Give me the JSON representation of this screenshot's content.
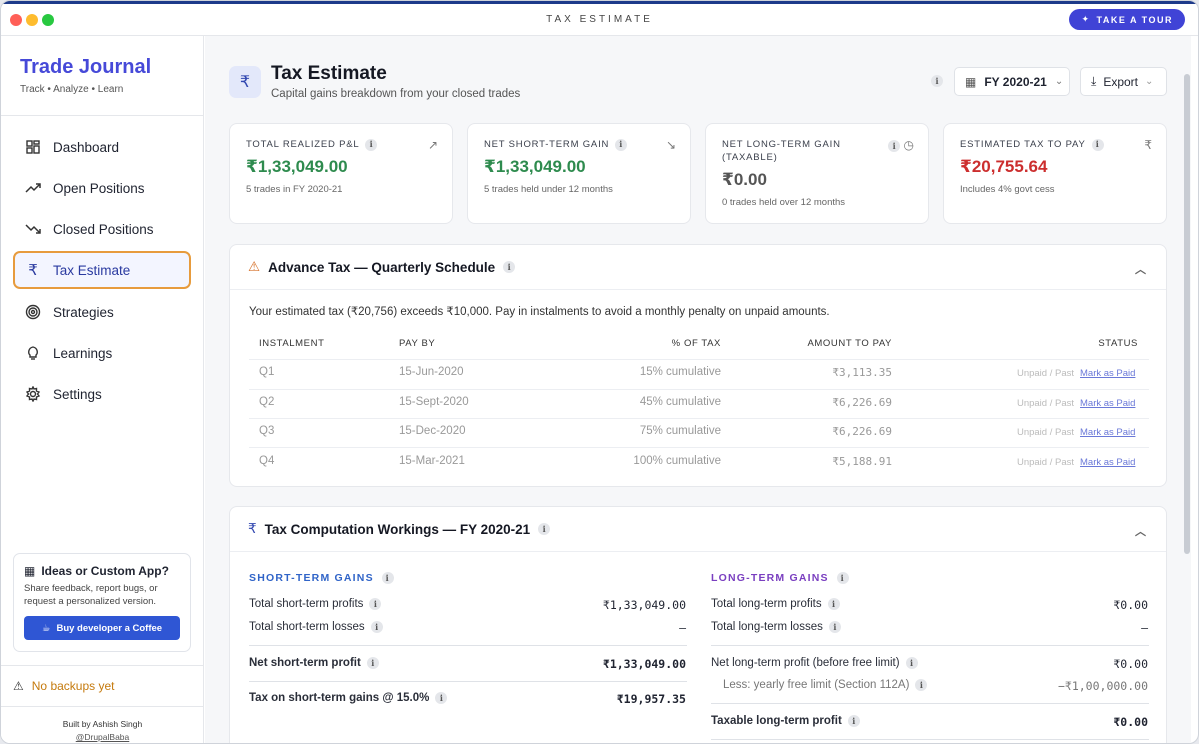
{
  "window": {
    "title": "TAX ESTIMATE",
    "tour_button": "TAKE A TOUR"
  },
  "sidebar": {
    "brand": "Trade Journal",
    "tagline": "Track • Analyze • Learn",
    "items": [
      {
        "label": "Dashboard",
        "icon": "grid-icon"
      },
      {
        "label": "Open Positions",
        "icon": "trend-up-icon"
      },
      {
        "label": "Closed Positions",
        "icon": "trend-down-icon"
      },
      {
        "label": "Tax Estimate",
        "icon": "rupee-icon"
      },
      {
        "label": "Strategies",
        "icon": "target-icon"
      },
      {
        "label": "Learnings",
        "icon": "bulb-icon"
      },
      {
        "label": "Settings",
        "icon": "gear-icon"
      }
    ],
    "ideas": {
      "title": "Ideas or Custom App?",
      "text": "Share feedback, report bugs, or request a personalized version.",
      "button": "Buy developer a Coffee"
    },
    "backups": "No backups yet",
    "built_by": "Built by Ashish Singh",
    "handle": "@DrupalBaba"
  },
  "header": {
    "icon": "₹",
    "title": "Tax Estimate",
    "subtitle": "Capital gains breakdown from your closed trades",
    "fy": "FY 2020-21",
    "export": "Export"
  },
  "kpis": [
    {
      "label": "TOTAL REALIZED P&L",
      "value": "₹1,33,049.00",
      "note": "5 trades in FY 2020-21",
      "color": "#2e8b4e"
    },
    {
      "label": "NET SHORT-TERM GAIN",
      "value": "₹1,33,049.00",
      "note": "5 trades held under 12 months",
      "color": "#2e8b4e"
    },
    {
      "label": "NET LONG-TERM GAIN",
      "label2": "(TAXABLE)",
      "value": "₹0.00",
      "note": "0 trades held over 12 months",
      "color": "#555555"
    },
    {
      "label": "ESTIMATED TAX TO PAY",
      "value": "₹20,755.64",
      "note": "Includes 4% govt cess",
      "color": "#cc2e2e"
    }
  ],
  "advance": {
    "title": "Advance Tax — Quarterly Schedule",
    "desc": "Your estimated tax (₹20,756) exceeds ₹10,000. Pay in instalments to avoid a monthly penalty on unpaid amounts.",
    "headers": {
      "instalment": "INSTALMENT",
      "pay_by": "PAY BY",
      "pct": "% OF TAX",
      "amount": "AMOUNT TO PAY",
      "status": "STATUS"
    },
    "rows": [
      {
        "q": "Q1",
        "date": "15-Jun-2020",
        "pct": "15% cumulative",
        "amount": "₹3,113.35",
        "status": "Unpaid / Past",
        "action": "Mark as Paid"
      },
      {
        "q": "Q2",
        "date": "15-Sept-2020",
        "pct": "45% cumulative",
        "amount": "₹6,226.69",
        "status": "Unpaid / Past",
        "action": "Mark as Paid"
      },
      {
        "q": "Q3",
        "date": "15-Dec-2020",
        "pct": "75% cumulative",
        "amount": "₹6,226.69",
        "status": "Unpaid / Past",
        "action": "Mark as Paid"
      },
      {
        "q": "Q4",
        "date": "15-Mar-2021",
        "pct": "100% cumulative",
        "amount": "₹5,188.91",
        "status": "Unpaid / Past",
        "action": "Mark as Paid"
      }
    ]
  },
  "computation": {
    "title": "Tax Computation Workings — FY 2020-21",
    "short": {
      "title": "SHORT-TERM GAINS",
      "profits_label": "Total short-term profits",
      "profits": "₹1,33,049.00",
      "losses_label": "Total short-term losses",
      "losses": "—",
      "net_label": "Net short-term profit",
      "net": "₹1,33,049.00",
      "tax_label": "Tax on short-term gains @ 15.0%",
      "tax": "₹19,957.35"
    },
    "long": {
      "title": "LONG-TERM GAINS",
      "profits_label": "Total long-term profits",
      "profits": "₹0.00",
      "losses_label": "Total long-term losses",
      "losses": "—",
      "net_label": "Net long-term profit (before free limit)",
      "net": "₹0.00",
      "limit_label": "Less: yearly free limit (Section 112A)",
      "limit": "−₹1,00,000.00",
      "taxable_label": "Taxable long-term profit",
      "taxable": "₹0.00"
    }
  }
}
